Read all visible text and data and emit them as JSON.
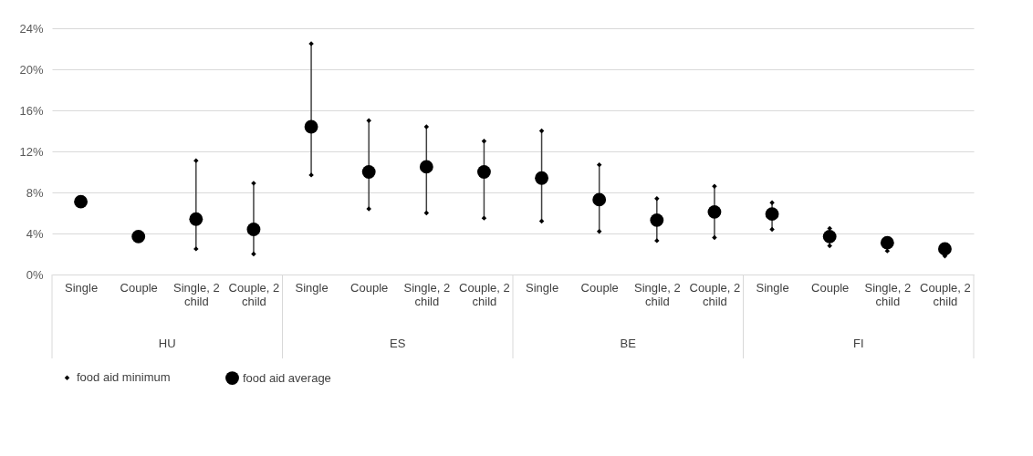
{
  "chart_data": {
    "type": "scatter",
    "categories": [
      "Single",
      "Couple",
      "Single, 2 child",
      "Couple, 2 child",
      "Single",
      "Couple",
      "Single, 2 child",
      "Couple, 2 child",
      "Single",
      "Couple",
      "Single, 2 child",
      "Couple, 2 child",
      "Single",
      "Couple",
      "Single, 2 child",
      "Couple, 2 child"
    ],
    "series": [
      {
        "name": "food aid minimum",
        "color": "#000000",
        "marker": "diamond",
        "values": [
          null,
          null,
          2.5,
          2.0,
          9.7,
          6.4,
          6.0,
          5.5,
          5.2,
          4.2,
          3.3,
          3.6,
          4.4,
          2.8,
          2.3,
          1.8
        ]
      },
      {
        "color": "#000000",
        "marker": "diamond",
        "values": [
          null,
          null,
          11.1,
          8.9,
          22.5,
          15.0,
          14.4,
          13.0,
          14.0,
          10.7,
          7.4,
          8.6,
          7.0,
          4.5,
          null,
          null
        ]
      },
      {
        "name": "food aid average",
        "color": "#000000",
        "marker": "circle",
        "values": [
          7.1,
          3.7,
          5.4,
          4.4,
          14.4,
          10.0,
          10.5,
          10.0,
          9.4,
          7.3,
          5.3,
          6.1,
          5.9,
          3.7,
          3.1,
          2.5
        ]
      }
    ],
    "annotations": [
      "HU",
      "ES",
      "BE",
      "FI"
    ],
    "ylim": [
      0,
      24
    ],
    "yticks": [
      {
        "value": 0,
        "label": "0%"
      },
      {
        "value": 4,
        "label": "4%"
      },
      {
        "value": 8,
        "label": "8%"
      },
      {
        "value": 12,
        "label": "12%"
      },
      {
        "value": 16,
        "label": "16%"
      },
      {
        "value": 20,
        "label": "20%"
      },
      {
        "value": 24,
        "label": "24%"
      }
    ],
    "grid": "y",
    "legend": "bottom"
  }
}
